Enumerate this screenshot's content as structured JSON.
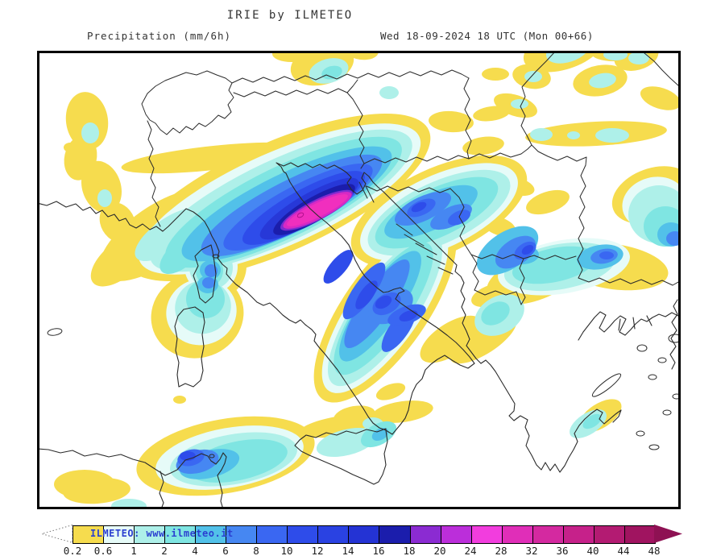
{
  "header": {
    "title": "IRIE by ILMETEO",
    "subtitle_left": "Precipitation (mm/6h)",
    "subtitle_right": "Wed 18-09-2024 18 UTC (Mon 00+66)"
  },
  "map": {
    "background": "#ffffff",
    "frame_color": "#000000",
    "coastline_color": "#2b2b2b"
  },
  "colorbar": {
    "watermark": "ILMETEO: www.ilmeteo.it",
    "watermark_color": "#2B3FD0",
    "labels": [
      "0.2",
      "0.6",
      "1",
      "2",
      "4",
      "6",
      "8",
      "10",
      "12",
      "14",
      "16",
      "18",
      "20",
      "24",
      "28",
      "32",
      "36",
      "40",
      "44",
      "48"
    ],
    "colors": [
      "#F6DC4E",
      "#E6FBF8",
      "#AEF0E9",
      "#7FE5E2",
      "#52C1E9",
      "#4687F2",
      "#3A67F2",
      "#2E4CEA",
      "#2A42E2",
      "#2433D4",
      "#1B1DAC",
      "#8B2BD2",
      "#BB2EDA",
      "#F23DDE",
      "#E02EB8",
      "#D429A0",
      "#C6218A",
      "#B31B72",
      "#A01460"
    ],
    "arrow_color": "#8E1153"
  },
  "chart_data": {
    "type": "heatmap",
    "title": "Precipitation (mm/6h)",
    "units": "mm/6h",
    "scale_levels": [
      0.2,
      0.6,
      1,
      2,
      4,
      6,
      8,
      10,
      12,
      14,
      16,
      18,
      20,
      24,
      28,
      32,
      36,
      40,
      44,
      48
    ],
    "scale_colors": [
      "#F6DC4E",
      "#E6FBF8",
      "#AEF0E9",
      "#7FE5E2",
      "#52C1E9",
      "#4687F2",
      "#3A67F2",
      "#2E4CEA",
      "#2A42E2",
      "#2433D4",
      "#1B1DAC",
      "#8B2BD2",
      "#BB2EDA",
      "#F23DDE",
      "#E02EB8",
      "#D429A0",
      "#C6218A",
      "#B31B72",
      "#A01460"
    ]
  }
}
